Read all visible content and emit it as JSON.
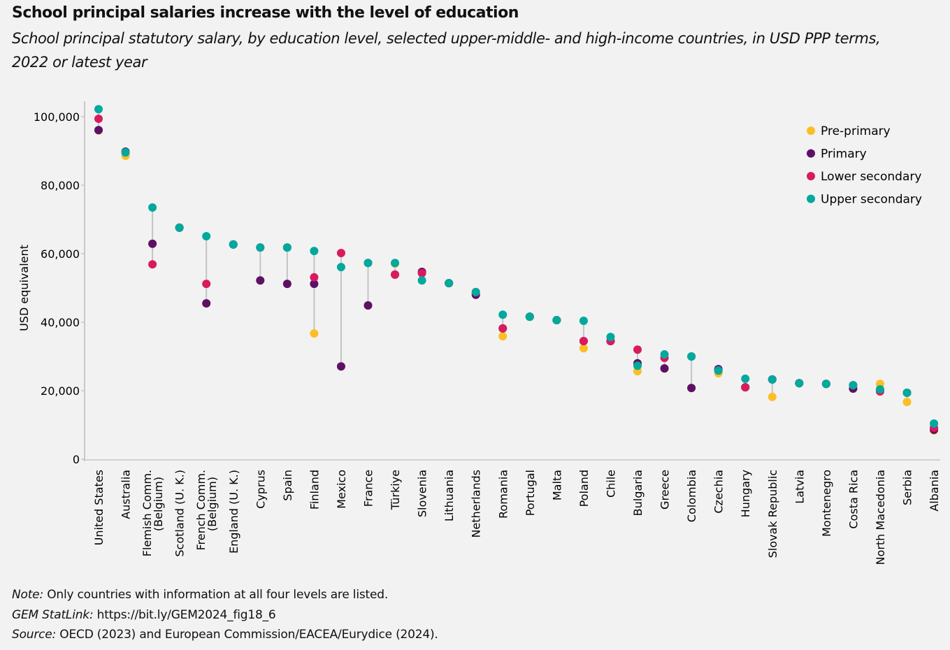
{
  "title": "School principal salaries increase with the level of education",
  "subtitle": "School principal statutory salary, by education level, selected upper-middle- and high-income countries, in USD PPP terms, 2022 or latest year",
  "footer": {
    "note_label": "Note:",
    "note_text": " Only countries with information at all four levels are listed.",
    "statlink_label": "GEM StatLink:",
    "statlink_text": " https://bit.ly/GEM2024_fig18_6",
    "source_label": "Source:",
    "source_text": " OECD (2023) and European Commission/EACEA/Eurydice (2024)."
  },
  "chart_data": {
    "type": "scatter",
    "ylabel": "USD equivalent",
    "ylim": [
      0,
      100000
    ],
    "yticks": [
      0,
      20000,
      40000,
      60000,
      80000,
      100000
    ],
    "ytick_labels": [
      "0",
      "20,000",
      "40,000",
      "60,000",
      "80,000",
      "100,000"
    ],
    "legend_position": "top-right",
    "grid": false,
    "categories": [
      "United States",
      "Australia",
      "Flemish Comm. (Belgium)",
      "Scotland (U. K.)",
      "French Comm. (Belgium)",
      "England (U. K.)",
      "Cyprus",
      "Spain",
      "Finland",
      "Mexico",
      "France",
      "Türkiye",
      "Slovenia",
      "Lithuania",
      "Netherlands",
      "Romania",
      "Portugal",
      "Malta",
      "Poland",
      "Chile",
      "Bulgaria",
      "Greece",
      "Colombia",
      "Czechia",
      "Hungary",
      "Slovak Republic",
      "Latvia",
      "Montenegro",
      "Costa Rica",
      "North Macedonia",
      "Serbia",
      "Albania"
    ],
    "series": [
      {
        "name": "Pre-primary",
        "color": "#fbbf24",
        "values": [
          96000,
          88600,
          62900,
          67600,
          45500,
          62700,
          52200,
          51200,
          36700,
          27100,
          44900,
          57100,
          54700,
          51400,
          48000,
          35900,
          41600,
          40600,
          32400,
          34500,
          25700,
          26500,
          20800,
          25100,
          21000,
          18200,
          22200,
          22000,
          20600,
          22000,
          16700,
          8400
        ]
      },
      {
        "name": "Primary",
        "color": "#5e1067",
        "values": [
          96100,
          89800,
          62900,
          67600,
          45500,
          62700,
          52200,
          51200,
          51200,
          27100,
          44900,
          53900,
          54700,
          51400,
          48000,
          38200,
          41600,
          40600,
          34500,
          34500,
          28000,
          26500,
          20800,
          26300,
          21000,
          23300,
          22200,
          22000,
          20600,
          20200,
          19400,
          8600
        ]
      },
      {
        "name": "Lower secondary",
        "color": "#d81b5e",
        "values": [
          99400,
          89600,
          56900,
          67600,
          51200,
          62700,
          61800,
          61800,
          53100,
          60200,
          57300,
          53900,
          54300,
          51400,
          48800,
          38200,
          41600,
          40600,
          34500,
          34500,
          32000,
          29600,
          30000,
          25900,
          21000,
          23300,
          22200,
          22000,
          21600,
          19800,
          19400,
          9200
        ]
      },
      {
        "name": "Upper secondary",
        "color": "#00a99d",
        "values": [
          102200,
          89600,
          73500,
          67600,
          65100,
          62700,
          61800,
          61800,
          60800,
          56100,
          57300,
          57300,
          52200,
          51400,
          48800,
          42200,
          41600,
          40600,
          40400,
          35700,
          27300,
          30600,
          30000,
          25900,
          23500,
          23300,
          22200,
          22000,
          21600,
          20400,
          19400,
          10400
        ]
      }
    ]
  }
}
